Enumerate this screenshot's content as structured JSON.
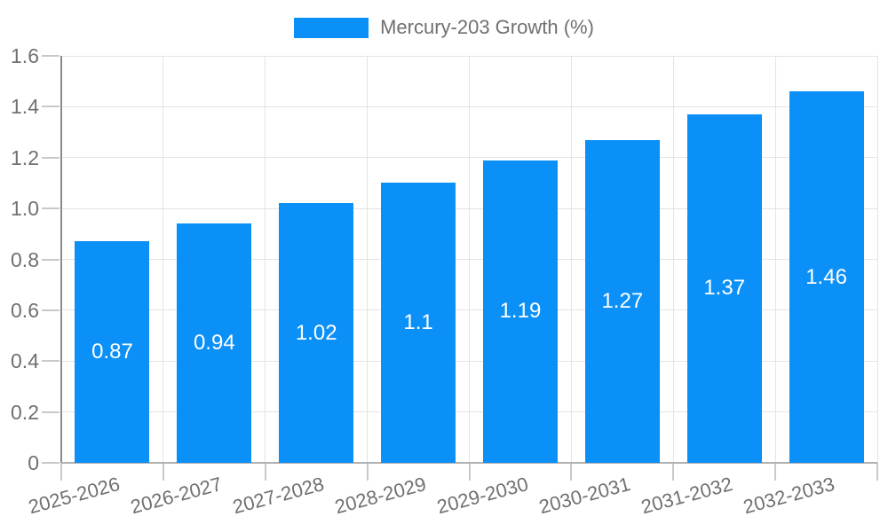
{
  "chart_data": {
    "type": "bar",
    "series_name": "Mercury-203 Growth (%)",
    "categories": [
      "2025-2026",
      "2026-2027",
      "2027-2028",
      "2028-2029",
      "2029-2030",
      "2030-2031",
      "2031-2032",
      "2032-2033"
    ],
    "values": [
      0.87,
      0.94,
      1.02,
      1.1,
      1.19,
      1.27,
      1.37,
      1.46
    ],
    "value_labels": [
      "0.87",
      "0.94",
      "1.02",
      "1.1",
      "1.19",
      "1.27",
      "1.37",
      "1.46"
    ],
    "ylim": [
      0,
      1.6
    ],
    "ytick_values": [
      0,
      0.2,
      0.4,
      0.6,
      0.8,
      1.0,
      1.2,
      1.4,
      1.6
    ],
    "ytick_labels": [
      "0",
      "0.2",
      "0.4",
      "0.6",
      "0.8",
      "1.0",
      "1.2",
      "1.4",
      "1.6"
    ],
    "xlabel": "",
    "ylabel": "",
    "grid": true,
    "legend_position": "top-center",
    "colors": {
      "bar": "#0b90f8",
      "axis_text": "#707070",
      "value_label_text": "#ffffff"
    }
  }
}
